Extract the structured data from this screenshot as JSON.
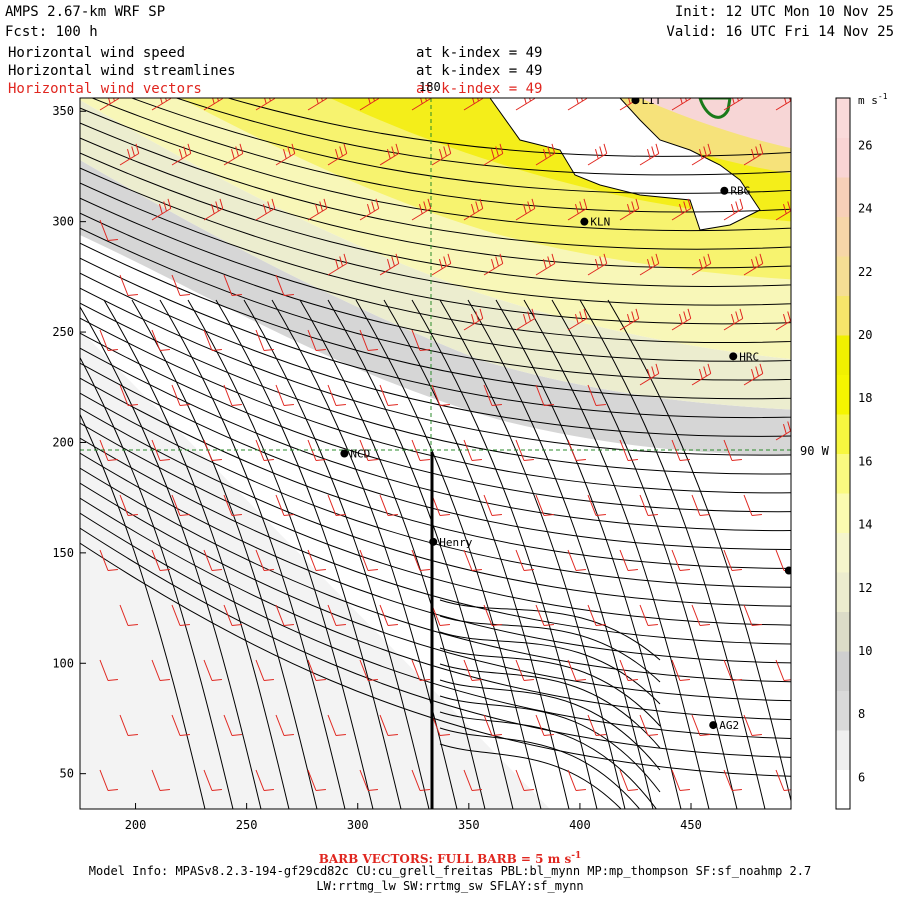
{
  "header": {
    "model": "AMPS 2.67-km WRF SP",
    "forecast": "Fcst: 100 h",
    "init": "Init: 12 UTC Mon 10 Nov 25",
    "valid": "Valid: 16 UTC Fri 14 Nov 25"
  },
  "fields": [
    {
      "name": "Horizontal wind speed",
      "level": "at k-index = 49",
      "color": "#000000"
    },
    {
      "name": "Horizontal wind streamlines",
      "level": "at k-index = 49",
      "color": "#000000"
    },
    {
      "name": "Horizontal wind vectors",
      "level": "at k-index = 49",
      "color": "#e0261f"
    }
  ],
  "axes": {
    "x_ticks": [
      "200",
      "250",
      "300",
      "350",
      "400",
      "450"
    ],
    "x_values": [
      200,
      250,
      300,
      350,
      400,
      450
    ],
    "x_range": [
      175,
      495
    ],
    "y_ticks": [
      "350",
      "300",
      "250",
      "200",
      "150",
      "100",
      "50"
    ],
    "y_values": [
      350,
      300,
      250,
      200,
      150,
      100,
      50
    ],
    "y_range": [
      34,
      356
    ],
    "meridian_label": "180",
    "meridian_x": 333,
    "parallel_label": "90 W",
    "parallel_y": 195
  },
  "stations": [
    {
      "id": "LIT",
      "x": 425,
      "y": 355
    },
    {
      "id": "RBG",
      "x": 465,
      "y": 314
    },
    {
      "id": "KLN",
      "x": 402,
      "y": 300
    },
    {
      "id": "HRC",
      "x": 469,
      "y": 239
    },
    {
      "id": "NCD",
      "x": 294,
      "y": 195
    },
    {
      "id": "Henry",
      "x": 334,
      "y": 155
    },
    {
      "id": "AG2",
      "x": 460,
      "y": 72
    },
    {
      "id": "",
      "x": 494,
      "y": 142
    }
  ],
  "colorbar": {
    "unit": "m s",
    "unit_exp": "-1",
    "labels": [
      "26",
      "24",
      "22",
      "20",
      "18",
      "16",
      "14",
      "12",
      "10",
      "8",
      "6"
    ],
    "label_values": [
      26,
      24,
      22,
      20,
      18,
      16,
      14,
      12,
      10,
      8,
      6
    ],
    "colors": [
      "#ffffff",
      "#efefef",
      "#d9d9d9",
      "#cfcfcf",
      "#dcdcc8",
      "#ececce",
      "#f5f5cc",
      "#fbfbb0",
      "#fafa80",
      "#f7f73f",
      "#f5f500",
      "#f0f000",
      "#f6e56a",
      "#f5de94",
      "#f6d6a8",
      "#f7d0b8",
      "#f9d4d4",
      "#fadada"
    ]
  },
  "legend": {
    "barb": "BARB VECTORS: FULL BARB = 5 m s",
    "barb_exp": "-1"
  },
  "footer": {
    "line1": "Model Info: MPASv8.2.3-194-gf29cd82c CU:cu_grell_freitas PBL:bl_mynn MP:mp_thompson SF:sf_noahmp 2.7",
    "line2": "LW:rrtmg_lw SW:rrtmg_sw SFLAY:sf_mynn"
  }
}
